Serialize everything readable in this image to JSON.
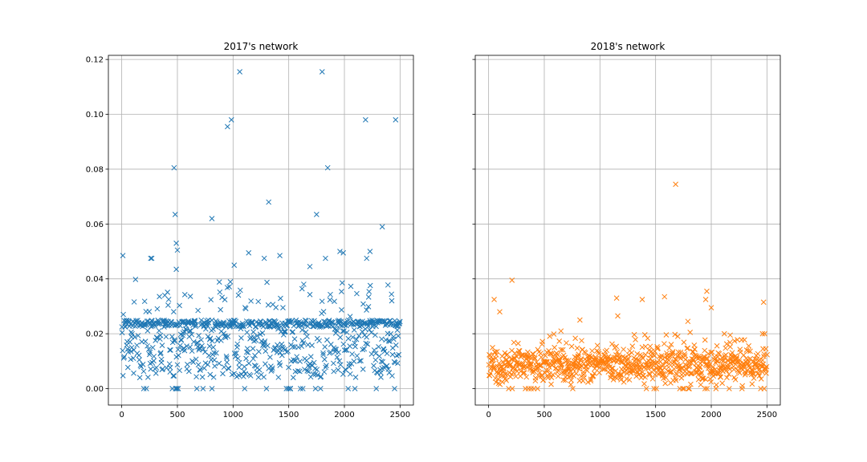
{
  "chart_data": [
    {
      "type": "scatter",
      "title": "2017's network",
      "marker": "x",
      "color": "#1f77b4",
      "grid": true,
      "xlim": [
        -120,
        2620
      ],
      "ylim": [
        -0.006,
        0.1215
      ],
      "xticks": [
        0,
        500,
        1000,
        1500,
        2000,
        2500
      ],
      "yticks": [
        0.0,
        0.02,
        0.04,
        0.06,
        0.08,
        0.1,
        0.12
      ],
      "ytick_labels": [
        "0.00",
        "0.02",
        "0.04",
        "0.06",
        "0.08",
        "0.10",
        "0.12"
      ],
      "xtick_labels": [
        "0",
        "500",
        "1000",
        "1500",
        "2000",
        "2500"
      ],
      "series": [
        {
          "count": 2500,
          "outliers": [
            {
              "x": 10,
              "y": 0.0485
            },
            {
              "x": 470,
              "y": 0.0805
            },
            {
              "x": 480,
              "y": 0.0635
            },
            {
              "x": 490,
              "y": 0.053
            },
            {
              "x": 500,
              "y": 0.0505
            },
            {
              "x": 950,
              "y": 0.0955
            },
            {
              "x": 985,
              "y": 0.098
            },
            {
              "x": 1060,
              "y": 0.1155
            },
            {
              "x": 1320,
              "y": 0.068
            },
            {
              "x": 810,
              "y": 0.062
            },
            {
              "x": 1750,
              "y": 0.0635
            },
            {
              "x": 1800,
              "y": 0.1155
            },
            {
              "x": 1850,
              "y": 0.0805
            },
            {
              "x": 2190,
              "y": 0.098
            },
            {
              "x": 2340,
              "y": 0.059
            },
            {
              "x": 2460,
              "y": 0.098
            },
            {
              "x": 2230,
              "y": 0.05
            },
            {
              "x": 1140,
              "y": 0.0495
            },
            {
              "x": 1420,
              "y": 0.0485
            },
            {
              "x": 1960,
              "y": 0.05
            },
            {
              "x": 1990,
              "y": 0.0495
            },
            {
              "x": 260,
              "y": 0.0475
            },
            {
              "x": 270,
              "y": 0.0475
            },
            {
              "x": 1280,
              "y": 0.0475
            },
            {
              "x": 1830,
              "y": 0.0475
            },
            {
              "x": 2200,
              "y": 0.0475
            },
            {
              "x": 1010,
              "y": 0.045
            },
            {
              "x": 1690,
              "y": 0.0445
            },
            {
              "x": 490,
              "y": 0.0435
            }
          ]
        }
      ]
    },
    {
      "type": "scatter",
      "title": "2018's network",
      "marker": "x",
      "color": "#ff7f0e",
      "grid": true,
      "xlim": [
        -120,
        2620
      ],
      "ylim": [
        -0.006,
        0.1215
      ],
      "xticks": [
        0,
        500,
        1000,
        1500,
        2000,
        2500
      ],
      "xtick_labels": [
        "0",
        "500",
        "1000",
        "1500",
        "2000",
        "2500"
      ],
      "series": [
        {
          "count": 2500,
          "outliers": [
            {
              "x": 1680,
              "y": 0.0745
            },
            {
              "x": 210,
              "y": 0.0395
            },
            {
              "x": 1960,
              "y": 0.0355
            },
            {
              "x": 1150,
              "y": 0.033
            },
            {
              "x": 1380,
              "y": 0.0325
            },
            {
              "x": 1580,
              "y": 0.0335
            },
            {
              "x": 50,
              "y": 0.0325
            },
            {
              "x": 1950,
              "y": 0.0325
            },
            {
              "x": 2470,
              "y": 0.0315
            },
            {
              "x": 2000,
              "y": 0.0295
            },
            {
              "x": 100,
              "y": 0.028
            },
            {
              "x": 1160,
              "y": 0.0265
            },
            {
              "x": 820,
              "y": 0.025
            },
            {
              "x": 1790,
              "y": 0.0245
            },
            {
              "x": 1810,
              "y": 0.0205
            },
            {
              "x": 650,
              "y": 0.021
            },
            {
              "x": 2170,
              "y": 0.0195
            },
            {
              "x": 2460,
              "y": 0.02
            },
            {
              "x": 2480,
              "y": 0.02
            }
          ]
        }
      ]
    }
  ]
}
